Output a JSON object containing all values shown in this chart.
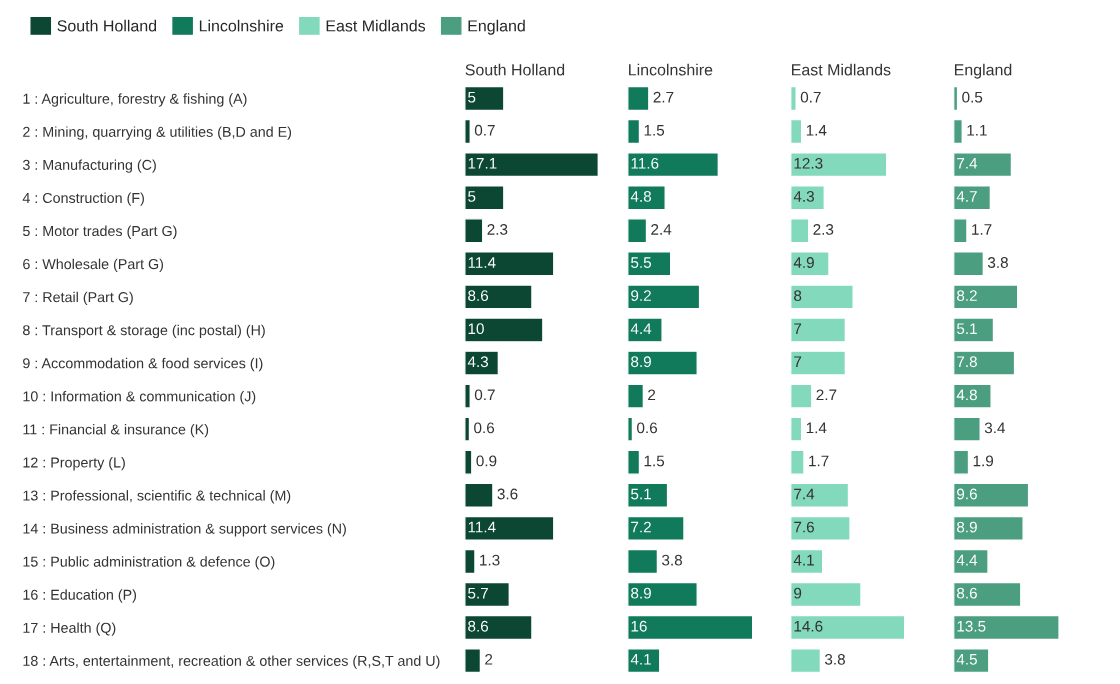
{
  "chart_data": [
    {
      "type": "bar",
      "orientation": "horizontal",
      "title": "South Holland",
      "data_labels": true,
      "legend": "top left",
      "tick_labels": "y",
      "categories": [
        "1 : Agriculture, forestry & fishing (A)",
        "2 : Mining, quarrying & utilities (B,D and E)",
        "3 : Manufacturing (C)",
        "4 : Construction (F)",
        "5 : Motor trades (Part G)",
        "6 : Wholesale (Part G)",
        "7 : Retail (Part G)",
        "8 : Transport & storage (inc postal) (H)",
        "9 : Accommodation & food services (I)",
        "10 : Information & communication (J)",
        "11 : Financial & insurance (K)",
        "12 : Property (L)",
        "13 : Professional, scientific & technical (M)",
        "14 : Business administration & support services (N)",
        "15 : Public administration & defence (O)",
        "16 : Education (P)",
        "17 : Health (Q)",
        "18 : Arts, entertainment, recreation & other services (R,S,T and U)"
      ],
      "series": [
        {
          "name": "South Holland",
          "color": "#0b4733",
          "values": [
            5,
            0.7,
            17.1,
            5,
            2.3,
            11.4,
            8.6,
            10,
            4.3,
            0.7,
            0.6,
            0.9,
            3.6,
            11.4,
            1.3,
            5.7,
            8.6,
            2
          ]
        }
      ]
    },
    {
      "type": "bar",
      "orientation": "horizontal",
      "title": "Lincolnshire",
      "data_labels": true,
      "tick_labels": false,
      "series": [
        {
          "name": "Lincolnshire",
          "color": "#107a5b",
          "values": [
            2.7,
            1.5,
            11.6,
            4.8,
            2.4,
            5.5,
            9.2,
            4.4,
            8.9,
            2,
            0.6,
            1.5,
            5.1,
            7.2,
            3.8,
            8.9,
            16,
            4.1
          ]
        }
      ]
    },
    {
      "type": "bar",
      "orientation": "horizontal",
      "title": "East Midlands",
      "data_labels": true,
      "tick_labels": false,
      "series": [
        {
          "name": "East Midlands",
          "color": "#83d9bb",
          "values": [
            0.7,
            1.4,
            12.3,
            4.3,
            2.3,
            4.9,
            8,
            7,
            7,
            2.7,
            1.4,
            1.7,
            7.4,
            7.6,
            4.1,
            9,
            14.6,
            3.8
          ]
        }
      ]
    },
    {
      "type": "bar",
      "orientation": "horizontal",
      "title": "England",
      "data_labels": true,
      "tick_labels": false,
      "series": [
        {
          "name": "England",
          "color": "#4b9e80",
          "values": [
            0.5,
            1.1,
            7.4,
            4.7,
            1.7,
            3.8,
            8.2,
            5.1,
            7.8,
            4.8,
            3.4,
            1.9,
            9.6,
            8.9,
            4.4,
            8.6,
            13.5,
            4.5
          ]
        }
      ]
    }
  ]
}
